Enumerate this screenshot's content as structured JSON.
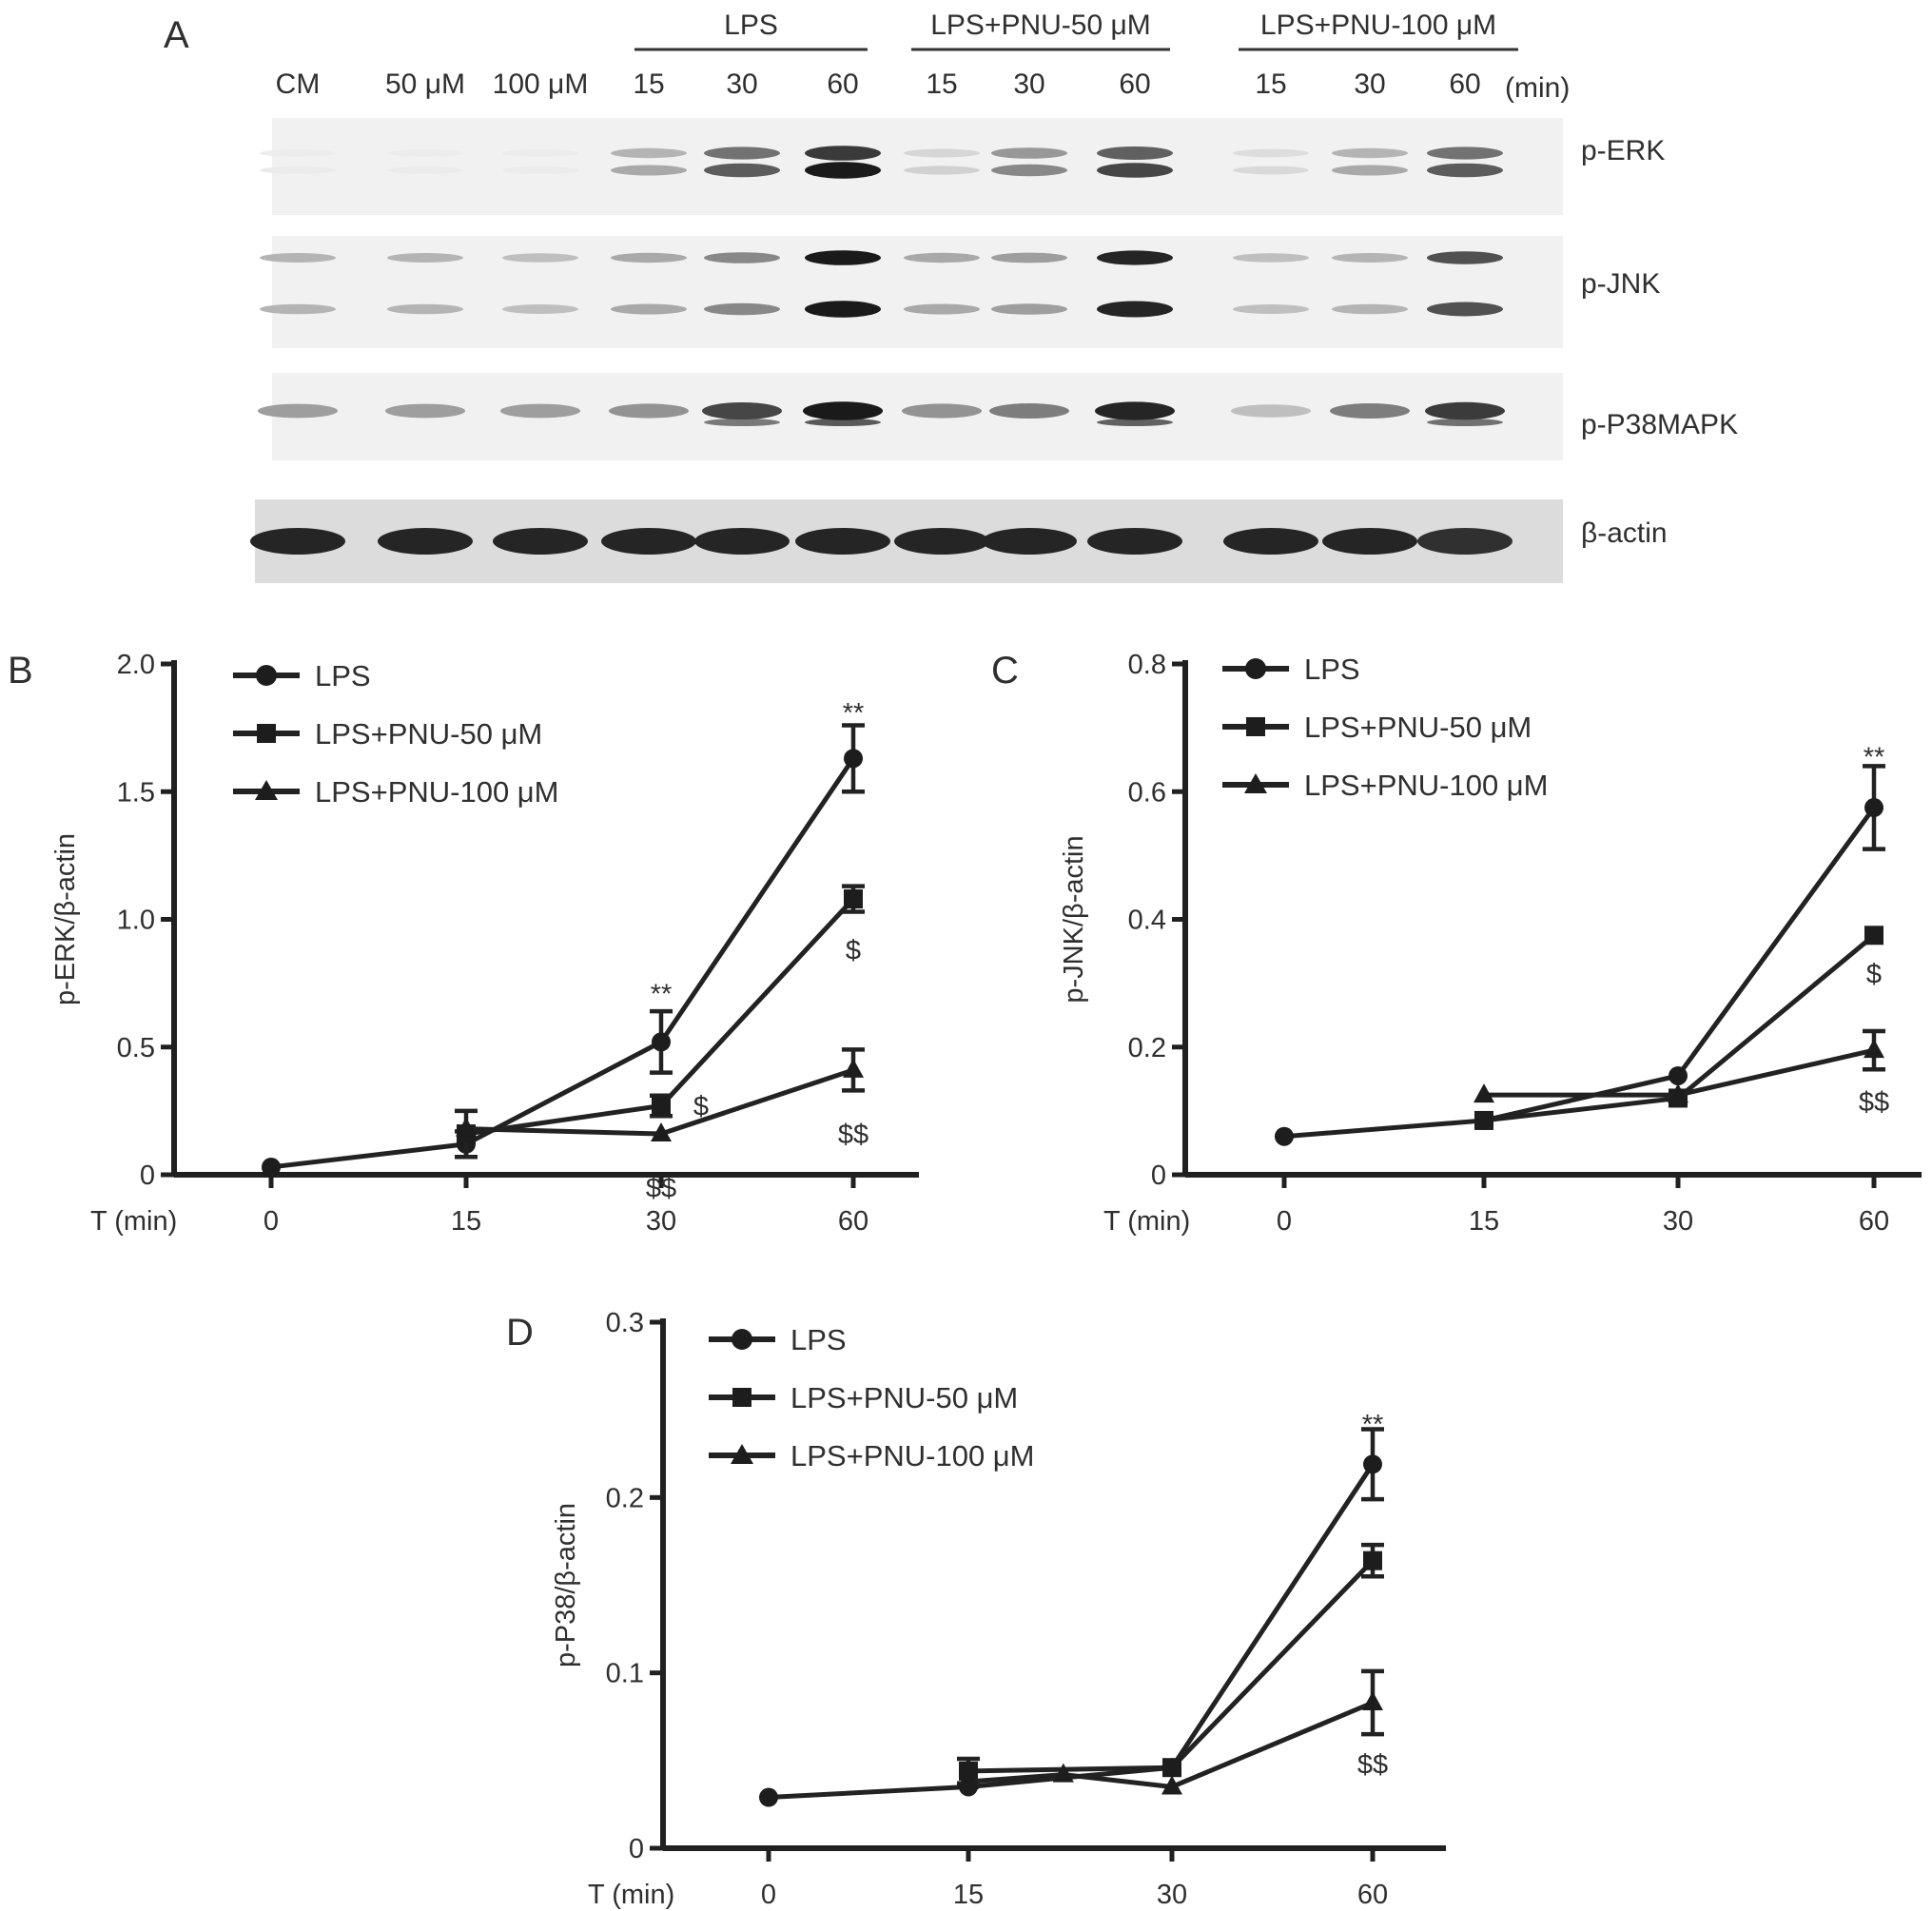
{
  "western_blot": {
    "panel_label": "A",
    "groups": [
      {
        "label": "LPS"
      },
      {
        "label": "LPS+PNU-50 μM"
      },
      {
        "label": "LPS+PNU-100 μM"
      }
    ],
    "lane_labels": [
      "CM",
      "50 μM",
      "100 μM",
      "15",
      "30",
      "60",
      "15",
      "30",
      "60",
      "15",
      "30",
      "60"
    ],
    "time_unit": "(min)",
    "rows": [
      {
        "label": "p-ERK",
        "intensity": [
          0,
          0,
          0,
          0.3,
          0.65,
          0.95,
          0.12,
          0.45,
          0.75,
          0.08,
          0.3,
          0.65
        ]
      },
      {
        "label": "p-JNK",
        "intensity": [
          0.25,
          0.25,
          0.2,
          0.3,
          0.45,
          0.95,
          0.3,
          0.35,
          0.9,
          0.2,
          0.25,
          0.7
        ]
      },
      {
        "label": "p-P38MAPK",
        "intensity": [
          0.35,
          0.35,
          0.35,
          0.4,
          0.75,
          0.95,
          0.4,
          0.5,
          0.9,
          0.2,
          0.5,
          0.8
        ]
      },
      {
        "label": "β-actin",
        "intensity": [
          0.9,
          0.9,
          0.9,
          0.9,
          0.9,
          0.9,
          0.9,
          0.9,
          0.9,
          0.9,
          0.9,
          0.85
        ]
      }
    ]
  },
  "chart_data": [
    {
      "panel_label": "B",
      "type": "line",
      "ylabel": "p-ERK/β-actin",
      "xlabel": "T (min)",
      "x": [
        0,
        15,
        30,
        60
      ],
      "ylim": [
        0,
        2.0
      ],
      "yticks": [
        "0",
        "0.5",
        "1.0",
        "1.5",
        "2.0"
      ],
      "yticks_values": [
        0,
        0.5,
        1.0,
        1.5,
        2.0
      ],
      "legend_position": "top-left",
      "series": [
        {
          "name": "LPS",
          "marker": "circle",
          "points": [
            {
              "x": 0,
              "y": 0.03,
              "err": 0
            },
            {
              "x": 15,
              "y": 0.12,
              "err": 0.05
            },
            {
              "x": 30,
              "y": 0.52,
              "err": 0.12
            },
            {
              "x": 60,
              "y": 1.63,
              "err": 0.13
            }
          ]
        },
        {
          "name": "LPS+PNU-50 μM",
          "marker": "square",
          "points": [
            {
              "x": 15,
              "y": 0.16,
              "err": 0.09
            },
            {
              "x": 30,
              "y": 0.27,
              "err": 0.04
            },
            {
              "x": 60,
              "y": 1.08,
              "err": 0.05
            }
          ]
        },
        {
          "name": "LPS+PNU-100 μM",
          "marker": "triangle",
          "points": [
            {
              "x": 15,
              "y": 0.18,
              "err": 0
            },
            {
              "x": 30,
              "y": 0.16,
              "err": 0
            },
            {
              "x": 60,
              "y": 0.41,
              "err": 0.08
            }
          ]
        }
      ],
      "annotations": [
        {
          "text": "**",
          "x": 30,
          "y": 0.71
        },
        {
          "text": "**",
          "x": 60,
          "y": 1.81
        },
        {
          "text": "$",
          "x": 60,
          "y": 0.88
        },
        {
          "text": "$",
          "x": 30,
          "y": 0.27
        },
        {
          "text": "$$",
          "x": 60,
          "y": 0.16
        },
        {
          "text": "$$",
          "x": 30,
          "y": -0.05
        }
      ]
    },
    {
      "panel_label": "C",
      "type": "line",
      "ylabel": "p-JNK/β-actin",
      "xlabel": "T (min)",
      "x": [
        0,
        15,
        30,
        60
      ],
      "ylim": [
        0,
        0.8
      ],
      "yticks": [
        "0",
        "0.2",
        "0.4",
        "0.6",
        "0.8"
      ],
      "yticks_values": [
        0,
        0.2,
        0.4,
        0.6,
        0.8
      ],
      "legend_position": "top-left",
      "series": [
        {
          "name": "LPS",
          "marker": "circle",
          "points": [
            {
              "x": 0,
              "y": 0.06,
              "err": 0
            },
            {
              "x": 15,
              "y": 0.085,
              "err": 0
            },
            {
              "x": 30,
              "y": 0.155,
              "err": 0
            },
            {
              "x": 60,
              "y": 0.575,
              "err": 0.065
            }
          ]
        },
        {
          "name": "LPS+PNU-50 μM",
          "marker": "square",
          "points": [
            {
              "x": 15,
              "y": 0.085,
              "err": 0
            },
            {
              "x": 30,
              "y": 0.12,
              "err": 0
            },
            {
              "x": 60,
              "y": 0.375,
              "err": 0
            }
          ]
        },
        {
          "name": "LPS+PNU-100 μM",
          "marker": "triangle",
          "points": [
            {
              "x": 15,
              "y": 0.125,
              "err": 0
            },
            {
              "x": 30,
              "y": 0.125,
              "err": 0
            },
            {
              "x": 60,
              "y": 0.195,
              "err": 0.03
            }
          ]
        }
      ],
      "annotations": [
        {
          "text": "**",
          "x": 60,
          "y": 0.655
        },
        {
          "text": "$",
          "x": 60,
          "y": 0.315
        },
        {
          "text": "$$",
          "x": 60,
          "y": 0.115
        }
      ]
    },
    {
      "panel_label": "D",
      "type": "line",
      "ylabel": "p-P38/β-actin",
      "xlabel": "T (min)",
      "x": [
        0,
        15,
        30,
        60
      ],
      "ylim": [
        0,
        0.3
      ],
      "yticks": [
        "0",
        "0.1",
        "0.2",
        "0.3"
      ],
      "yticks_values": [
        0,
        0.1,
        0.2,
        0.3
      ],
      "legend_position": "top-left",
      "series": [
        {
          "name": "LPS",
          "marker": "circle",
          "points": [
            {
              "x": 0,
              "y": 0.029,
              "err": 0
            },
            {
              "x": 15,
              "y": 0.035,
              "err": 0
            },
            {
              "x": 30,
              "y": 0.046,
              "err": 0
            },
            {
              "x": 60,
              "y": 0.219,
              "err": 0.02
            }
          ]
        },
        {
          "name": "LPS+PNU-50 μM",
          "marker": "square",
          "points": [
            {
              "x": 15,
              "y": 0.044,
              "err": 0.007
            },
            {
              "x": 30,
              "y": 0.046,
              "err": 0
            },
            {
              "x": 60,
              "y": 0.164,
              "err": 0.009
            }
          ]
        },
        {
          "name": "LPS+PNU-100 μM",
          "marker": "triangle",
          "points": [
            {
              "x": 15,
              "y": 0.038,
              "err": 0
            },
            {
              "x": 22,
              "y": 0.042,
              "err": 0
            },
            {
              "x": 30,
              "y": 0.035,
              "err": 0
            },
            {
              "x": 60,
              "y": 0.083,
              "err": 0.018
            }
          ]
        }
      ],
      "annotations": [
        {
          "text": "**",
          "x": 60,
          "y": 0.242
        },
        {
          "text": "$$",
          "x": 60,
          "y": 0.048
        }
      ]
    }
  ]
}
